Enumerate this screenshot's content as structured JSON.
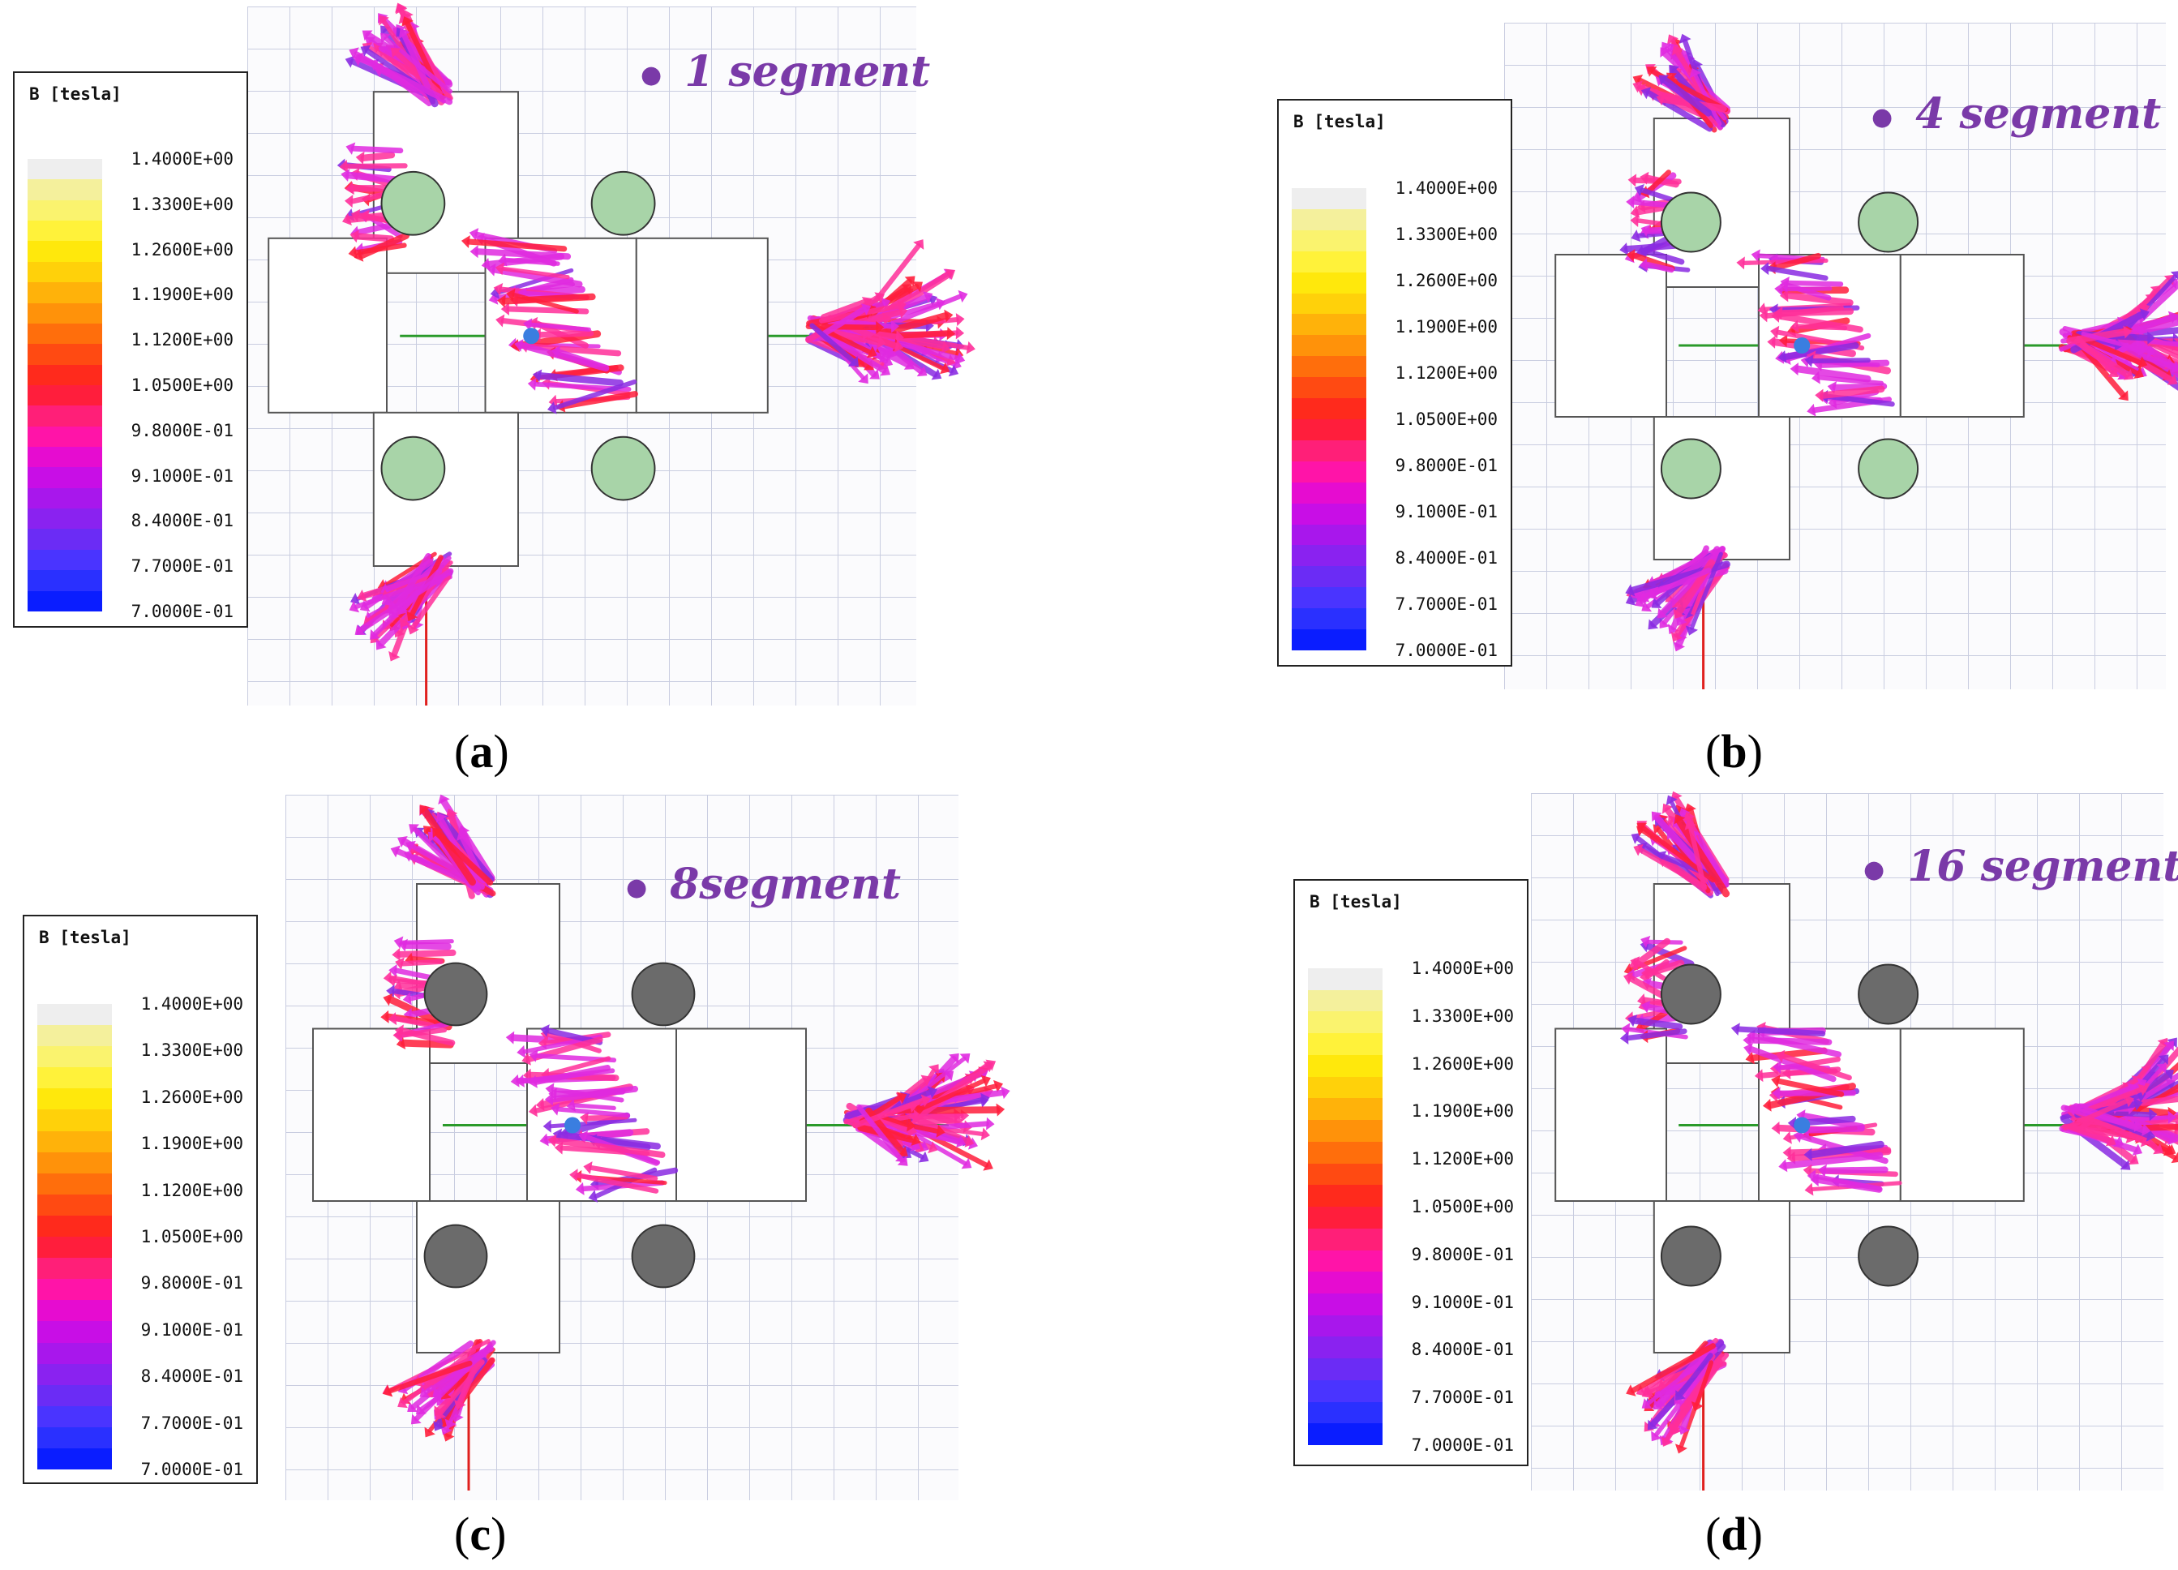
{
  "figure": {
    "legend_title": "B [tesla]",
    "colorbar_ticks": [
      "1.4000E+00",
      "1.3300E+00",
      "1.2600E+00",
      "1.1900E+00",
      "1.1200E+00",
      "1.0500E+00",
      "9.8000E-01",
      "9.1000E-01",
      "8.4000E-01",
      "7.7000E-01",
      "7.0000E-01"
    ],
    "colorbar_colors": [
      "#0a1dff",
      "#2a30ff",
      "#4a34ff",
      "#6b2cf5",
      "#8a22f0",
      "#a817ec",
      "#c80ee6",
      "#e60cd0",
      "#ff14a8",
      "#ff1f78",
      "#ff1e3c",
      "#ff2a1c",
      "#ff4a12",
      "#ff6e0c",
      "#ff920a",
      "#ffb20a",
      "#ffd10a",
      "#ffe80c",
      "#fff23a",
      "#faf36e",
      "#f4f09c",
      "#eeeeee"
    ],
    "colors": {
      "arrow_magenta": "#e02ae0",
      "arrow_violet": "#8a2be2",
      "arrow_red": "#ff1e3c",
      "arrow_pink": "#ff2f9a",
      "magnet_green": "#a8d4a8",
      "magnet_gray": "#6b6b6b",
      "label_purple": "#7a3aa8"
    },
    "panels": [
      {
        "id": "a",
        "segment_label": "1 segment",
        "caption_letter": "a",
        "magnet": "green"
      },
      {
        "id": "b",
        "segment_label": "4 segment",
        "caption_letter": "b",
        "magnet": "green"
      },
      {
        "id": "c",
        "segment_label": "8segment",
        "caption_letter": "c",
        "magnet": "gray"
      },
      {
        "id": "d",
        "segment_label": "16 segment",
        "caption_letter": "d",
        "magnet": "gray"
      }
    ]
  }
}
